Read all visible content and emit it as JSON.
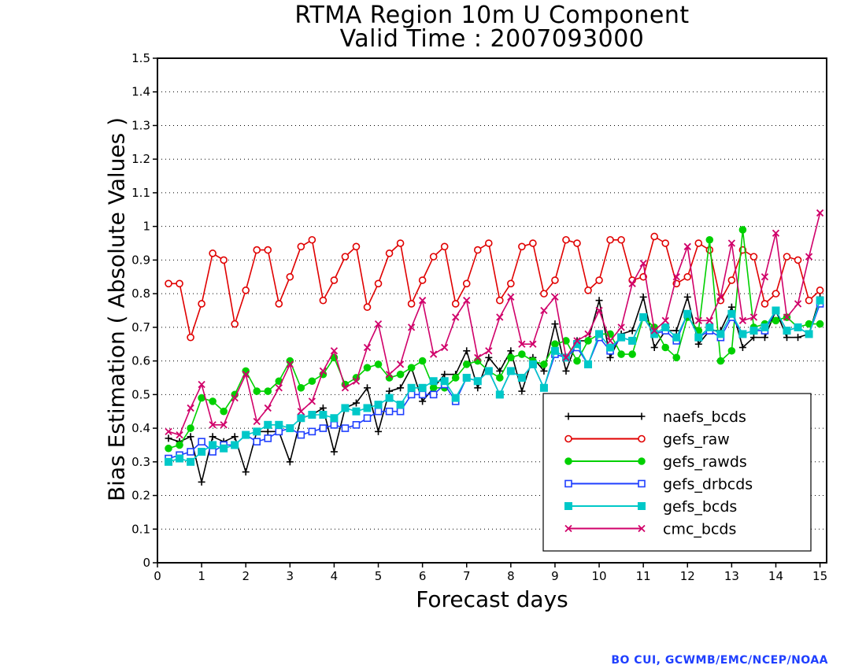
{
  "chart_data": {
    "type": "line",
    "title": "RTMA Region 10m U Component",
    "subtitle": "Valid Time : 2007093000",
    "xlabel": "Forecast days",
    "ylabel": "Bias Estimation ( Absolute Values )",
    "xlim": [
      0,
      15.15
    ],
    "ylim": [
      0,
      1.5
    ],
    "xticks": [
      0,
      1,
      2,
      3,
      4,
      5,
      6,
      7,
      8,
      9,
      10,
      11,
      12,
      13,
      14,
      15
    ],
    "yticks": [
      0,
      0.1,
      0.2,
      0.3,
      0.4,
      0.5,
      0.6,
      0.7,
      0.8,
      0.9,
      1,
      1.1,
      1.2,
      1.3,
      1.4,
      1.5
    ],
    "ytick_labels": [
      "0",
      "0.1",
      "0.2",
      "0.3",
      "0.4",
      "0.5",
      "0.6",
      "0.7",
      "0.8",
      "0.9",
      "1",
      "1.1",
      "1.2",
      "1.3",
      "1.4",
      "1.5"
    ],
    "grid": "horizontal dotted",
    "legend_position": "lower-right",
    "x": [
      0.25,
      0.5,
      0.75,
      1,
      1.25,
      1.5,
      1.75,
      2,
      2.25,
      2.5,
      2.75,
      3,
      3.25,
      3.5,
      3.75,
      4,
      4.25,
      4.5,
      4.75,
      5,
      5.25,
      5.5,
      5.75,
      6,
      6.25,
      6.5,
      6.75,
      7,
      7.25,
      7.5,
      7.75,
      8,
      8.25,
      8.5,
      8.75,
      9,
      9.25,
      9.5,
      9.75,
      10,
      10.25,
      10.5,
      10.75,
      11,
      11.25,
      11.5,
      11.75,
      12,
      12.25,
      12.5,
      12.75,
      13,
      13.25,
      13.5,
      13.75,
      14,
      14.25,
      14.5,
      14.75,
      15
    ],
    "series": [
      {
        "name": "naefs_bcds",
        "color": "#000000",
        "marker": "plus",
        "values": [
          0.37,
          0.36,
          0.375,
          0.24,
          0.375,
          0.36,
          0.375,
          0.27,
          0.39,
          0.39,
          0.39,
          0.3,
          0.43,
          0.44,
          0.46,
          0.33,
          0.46,
          0.475,
          0.52,
          0.39,
          0.51,
          0.52,
          0.58,
          0.48,
          0.52,
          0.56,
          0.56,
          0.63,
          0.52,
          0.61,
          0.57,
          0.63,
          0.51,
          0.61,
          0.57,
          0.71,
          0.57,
          0.66,
          0.66,
          0.78,
          0.61,
          0.68,
          0.69,
          0.79,
          0.64,
          0.69,
          0.69,
          0.79,
          0.65,
          0.69,
          0.69,
          0.76,
          0.64,
          0.67,
          0.67,
          0.75,
          0.67,
          0.67,
          0.68,
          0.79
        ]
      },
      {
        "name": "gefs_raw",
        "color": "#e00000",
        "marker": "circle",
        "values": [
          0.83,
          0.83,
          0.67,
          0.77,
          0.92,
          0.9,
          0.71,
          0.81,
          0.93,
          0.93,
          0.77,
          0.85,
          0.94,
          0.96,
          0.78,
          0.84,
          0.91,
          0.94,
          0.76,
          0.83,
          0.92,
          0.95,
          0.77,
          0.84,
          0.91,
          0.94,
          0.77,
          0.83,
          0.93,
          0.95,
          0.78,
          0.83,
          0.94,
          0.95,
          0.8,
          0.84,
          0.96,
          0.95,
          0.81,
          0.84,
          0.96,
          0.96,
          0.84,
          0.85,
          0.97,
          0.95,
          0.83,
          0.85,
          0.95,
          0.93,
          0.78,
          0.84,
          0.93,
          0.91,
          0.77,
          0.8,
          0.91,
          0.9,
          0.78,
          0.81
        ]
      },
      {
        "name": "gefs_rawds",
        "color": "#00d000",
        "marker": "dot",
        "values": [
          0.34,
          0.35,
          0.4,
          0.49,
          0.48,
          0.45,
          0.5,
          0.57,
          0.51,
          0.51,
          0.54,
          0.6,
          0.52,
          0.54,
          0.56,
          0.61,
          0.53,
          0.55,
          0.58,
          0.59,
          0.55,
          0.56,
          0.58,
          0.6,
          0.52,
          0.52,
          0.55,
          0.59,
          0.6,
          0.57,
          0.55,
          0.61,
          0.62,
          0.6,
          0.59,
          0.65,
          0.66,
          0.6,
          0.66,
          0.68,
          0.68,
          0.62,
          0.62,
          0.73,
          0.7,
          0.64,
          0.61,
          0.73,
          0.69,
          0.96,
          0.6,
          0.63,
          0.99,
          0.7,
          0.71,
          0.72,
          0.73,
          0.7,
          0.71,
          0.71
        ]
      },
      {
        "name": "gefs_drbcds",
        "color": "#1f3fff",
        "marker": "open-square",
        "values": [
          0.31,
          0.32,
          0.33,
          0.36,
          0.33,
          0.35,
          0.35,
          0.38,
          0.36,
          0.37,
          0.39,
          0.4,
          0.38,
          0.39,
          0.4,
          0.41,
          0.4,
          0.41,
          0.43,
          0.45,
          0.45,
          0.45,
          0.5,
          0.5,
          0.5,
          0.53,
          0.48,
          0.55,
          0.54,
          0.57,
          0.5,
          0.57,
          0.55,
          0.59,
          0.52,
          0.62,
          0.61,
          0.64,
          0.59,
          0.67,
          0.63,
          0.67,
          0.66,
          0.73,
          0.68,
          0.69,
          0.66,
          0.74,
          0.67,
          0.69,
          0.67,
          0.73,
          0.68,
          0.69,
          0.69,
          0.75,
          0.69,
          0.7,
          0.68,
          0.77
        ]
      },
      {
        "name": "gefs_bcds",
        "color": "#00c8c8",
        "marker": "filled-square",
        "values": [
          0.3,
          0.31,
          0.3,
          0.33,
          0.35,
          0.34,
          0.35,
          0.38,
          0.39,
          0.41,
          0.41,
          0.4,
          0.43,
          0.44,
          0.44,
          0.43,
          0.46,
          0.45,
          0.46,
          0.47,
          0.49,
          0.47,
          0.52,
          0.52,
          0.54,
          0.54,
          0.49,
          0.55,
          0.54,
          0.57,
          0.5,
          0.57,
          0.55,
          0.59,
          0.52,
          0.63,
          0.61,
          0.65,
          0.59,
          0.68,
          0.64,
          0.67,
          0.66,
          0.73,
          0.68,
          0.7,
          0.67,
          0.74,
          0.67,
          0.7,
          0.68,
          0.74,
          0.68,
          0.69,
          0.7,
          0.75,
          0.69,
          0.7,
          0.68,
          0.78
        ]
      },
      {
        "name": "cmc_bcds",
        "color": "#d0006a",
        "marker": "x",
        "values": [
          0.39,
          0.38,
          0.46,
          0.53,
          0.41,
          0.41,
          0.49,
          0.56,
          0.42,
          0.46,
          0.52,
          0.59,
          0.45,
          0.48,
          0.57,
          0.63,
          0.52,
          0.54,
          0.64,
          0.71,
          0.56,
          0.59,
          0.7,
          0.78,
          0.62,
          0.64,
          0.73,
          0.78,
          0.61,
          0.63,
          0.73,
          0.79,
          0.65,
          0.65,
          0.75,
          0.79,
          0.61,
          0.66,
          0.68,
          0.75,
          0.66,
          0.7,
          0.83,
          0.89,
          0.69,
          0.72,
          0.85,
          0.94,
          0.72,
          0.72,
          0.79,
          0.95,
          0.72,
          0.73,
          0.85,
          0.98,
          0.73,
          0.77,
          0.91,
          1.04
        ]
      }
    ]
  },
  "credit": "BO CUI, GCWMB/EMC/NCEP/NOAA"
}
